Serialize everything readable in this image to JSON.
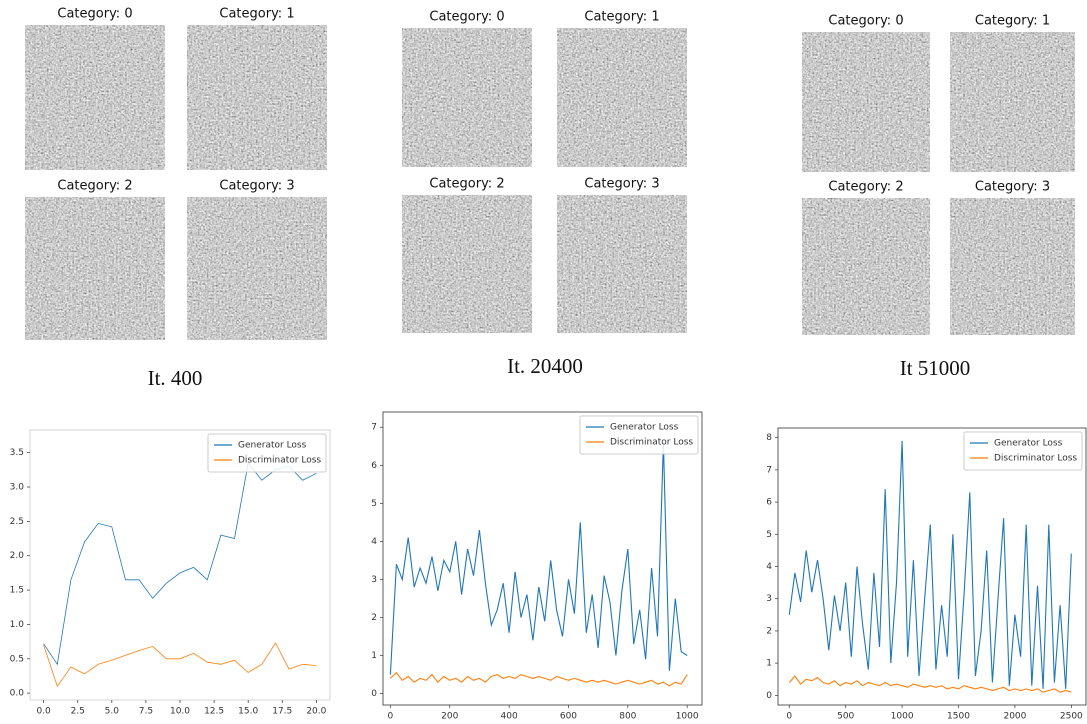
{
  "image_panels": [
    {
      "titles": [
        "Category: 0",
        "Category: 1",
        "Category: 2",
        "Category: 3"
      ],
      "caption": "It. 400"
    },
    {
      "titles": [
        "Category: 0",
        "Category: 1",
        "Category: 2",
        "Category: 3"
      ],
      "caption": "It. 20400"
    },
    {
      "titles": [
        "Category: 0",
        "Category: 1",
        "Category: 2",
        "Category: 3"
      ],
      "caption": "It 51000"
    }
  ],
  "chart_data": [
    {
      "type": "line",
      "x": [
        0,
        1,
        2,
        3,
        4,
        5,
        6,
        7,
        8,
        9,
        10,
        11,
        12,
        13,
        14,
        15,
        16,
        17,
        18,
        19,
        20
      ],
      "series": [
        {
          "name": "Generator Loss",
          "color": "#1f77b4",
          "values": [
            0.72,
            0.42,
            1.65,
            2.2,
            2.47,
            2.42,
            1.65,
            1.65,
            1.38,
            1.6,
            1.75,
            1.83,
            1.65,
            2.3,
            2.25,
            3.35,
            3.1,
            3.25,
            3.3,
            3.1,
            3.2
          ]
        },
        {
          "name": "Discriminator Loss",
          "color": "#ff7f0e",
          "values": [
            0.7,
            0.1,
            0.38,
            0.28,
            0.42,
            0.48,
            0.55,
            0.62,
            0.68,
            0.5,
            0.5,
            0.58,
            0.45,
            0.42,
            0.48,
            0.3,
            0.42,
            0.73,
            0.35,
            0.42,
            0.4
          ]
        }
      ],
      "xlim": [
        -1,
        21
      ],
      "xticks": [
        {
          "value": 0,
          "label": "0.0"
        },
        2.5,
        {
          "value": 5,
          "label": "5.0"
        },
        7.5,
        {
          "value": 10,
          "label": "10.0"
        },
        12.5,
        {
          "value": 15,
          "label": "15.0"
        },
        17.5,
        {
          "value": 20,
          "label": "20.0"
        }
      ],
      "ylim": [
        -0.1,
        3.83
      ],
      "yticks": [
        {
          "value": 0,
          "label": "0.0"
        },
        0.5,
        {
          "value": 1,
          "label": "1.0"
        },
        1.5,
        {
          "value": 2,
          "label": "2.0"
        },
        2.5,
        {
          "value": 3,
          "label": "3.0"
        },
        3.5
      ],
      "legend": "upper right"
    },
    {
      "type": "line",
      "x": [
        0,
        20,
        40,
        60,
        80,
        100,
        120,
        140,
        160,
        180,
        200,
        220,
        240,
        260,
        280,
        300,
        320,
        340,
        360,
        380,
        400,
        420,
        440,
        460,
        480,
        500,
        520,
        540,
        560,
        580,
        600,
        620,
        640,
        660,
        680,
        700,
        720,
        740,
        760,
        780,
        800,
        820,
        840,
        860,
        880,
        900,
        920,
        940,
        960,
        980,
        1000
      ],
      "series": [
        {
          "name": "Generator Loss",
          "color": "#1f77b4",
          "values": [
            0.5,
            3.4,
            3.0,
            4.1,
            2.8,
            3.3,
            2.9,
            3.6,
            2.7,
            3.5,
            3.2,
            4.0,
            2.6,
            3.8,
            3.1,
            4.3,
            2.9,
            1.8,
            2.2,
            2.9,
            1.6,
            3.2,
            2.0,
            2.6,
            1.4,
            2.8,
            1.9,
            3.5,
            2.2,
            1.5,
            3.0,
            2.1,
            4.5,
            1.6,
            2.6,
            1.2,
            3.1,
            2.4,
            1.0,
            2.7,
            3.8,
            1.3,
            2.2,
            0.9,
            3.3,
            1.5,
            6.6,
            0.6,
            2.5,
            1.1,
            1.0
          ]
        },
        {
          "name": "Discriminator Loss",
          "color": "#ff7f0e",
          "values": [
            0.4,
            0.55,
            0.35,
            0.45,
            0.3,
            0.4,
            0.35,
            0.5,
            0.3,
            0.45,
            0.35,
            0.4,
            0.3,
            0.45,
            0.35,
            0.4,
            0.3,
            0.45,
            0.5,
            0.4,
            0.45,
            0.4,
            0.5,
            0.45,
            0.4,
            0.45,
            0.4,
            0.35,
            0.45,
            0.4,
            0.35,
            0.4,
            0.35,
            0.3,
            0.35,
            0.3,
            0.35,
            0.3,
            0.25,
            0.3,
            0.35,
            0.3,
            0.25,
            0.3,
            0.35,
            0.25,
            0.3,
            0.2,
            0.3,
            0.25,
            0.5
          ]
        }
      ],
      "xlim": [
        -25,
        1050
      ],
      "xticks": [
        0,
        200,
        400,
        600,
        800,
        1000
      ],
      "ylim": [
        -0.3,
        7.4
      ],
      "yticks": [
        0,
        1,
        2,
        3,
        4,
        5,
        6,
        7
      ],
      "legend": "upper right"
    },
    {
      "type": "line",
      "x": [
        0,
        50,
        100,
        150,
        200,
        250,
        300,
        350,
        400,
        450,
        500,
        550,
        600,
        650,
        700,
        750,
        800,
        850,
        900,
        950,
        1000,
        1050,
        1100,
        1150,
        1200,
        1250,
        1300,
        1350,
        1400,
        1450,
        1500,
        1550,
        1600,
        1650,
        1700,
        1750,
        1800,
        1850,
        1900,
        1950,
        2000,
        2050,
        2100,
        2150,
        2200,
        2250,
        2300,
        2350,
        2400,
        2450,
        2500
      ],
      "series": [
        {
          "name": "Generator Loss",
          "color": "#1f77b4",
          "values": [
            2.5,
            3.8,
            2.9,
            4.5,
            3.2,
            4.2,
            3.0,
            1.4,
            3.1,
            2.0,
            3.5,
            1.2,
            4.0,
            2.2,
            0.8,
            3.8,
            1.5,
            6.4,
            1.0,
            3.5,
            7.9,
            1.2,
            4.2,
            0.6,
            3.0,
            5.3,
            0.8,
            2.8,
            1.2,
            5.0,
            0.5,
            3.2,
            6.3,
            0.6,
            2.0,
            4.5,
            0.4,
            3.0,
            5.5,
            0.3,
            2.5,
            1.2,
            5.3,
            0.3,
            3.4,
            0.2,
            5.3,
            0.4,
            2.8,
            0.2,
            4.4
          ]
        },
        {
          "name": "Discriminator Loss",
          "color": "#ff7f0e",
          "values": [
            0.4,
            0.6,
            0.35,
            0.5,
            0.45,
            0.55,
            0.4,
            0.35,
            0.45,
            0.3,
            0.4,
            0.35,
            0.45,
            0.3,
            0.4,
            0.35,
            0.3,
            0.4,
            0.3,
            0.35,
            0.3,
            0.25,
            0.35,
            0.3,
            0.25,
            0.3,
            0.25,
            0.3,
            0.2,
            0.25,
            0.2,
            0.3,
            0.25,
            0.2,
            0.25,
            0.2,
            0.15,
            0.2,
            0.25,
            0.15,
            0.2,
            0.15,
            0.2,
            0.15,
            0.2,
            0.1,
            0.15,
            0.2,
            0.1,
            0.15,
            0.1
          ]
        }
      ],
      "xlim": [
        -100,
        2630
      ],
      "xticks": [
        0,
        500,
        1000,
        1500,
        2000,
        2500
      ],
      "ylim": [
        -0.3,
        8.3
      ],
      "yticks": [
        0,
        1,
        2,
        3,
        4,
        5,
        6,
        7,
        8
      ],
      "legend": "upper right"
    }
  ]
}
